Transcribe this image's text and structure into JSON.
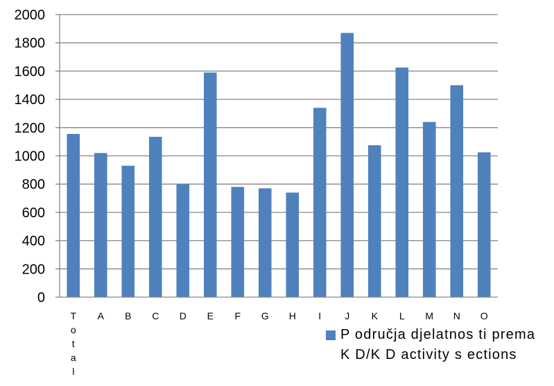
{
  "chart_data": {
    "type": "bar",
    "categories": [
      "Total",
      "A",
      "B",
      "C",
      "D",
      "E",
      "F",
      "G",
      "H",
      "I",
      "J",
      "K",
      "L",
      "M",
      "N",
      "O"
    ],
    "series": [
      {
        "name": "Područja djelatnosti prema KD/KD activity sections",
        "values": [
          1155,
          1020,
          930,
          1135,
          800,
          1590,
          780,
          770,
          740,
          1340,
          1870,
          1075,
          1625,
          1240,
          1500,
          1025
        ]
      }
    ],
    "ylim": [
      0,
      2000
    ],
    "yticks": [
      "0",
      "200",
      "400",
      "600",
      "800",
      "1000",
      "1200",
      "1400",
      "1600",
      "1800",
      "2000"
    ],
    "grid": true,
    "legend_position": "bottom-right",
    "bar_color": "#4f81bd",
    "grid_color": "#868686"
  },
  "legend": {
    "label": "P odručja djelatnos ti prema K D/K D activity s ections"
  }
}
